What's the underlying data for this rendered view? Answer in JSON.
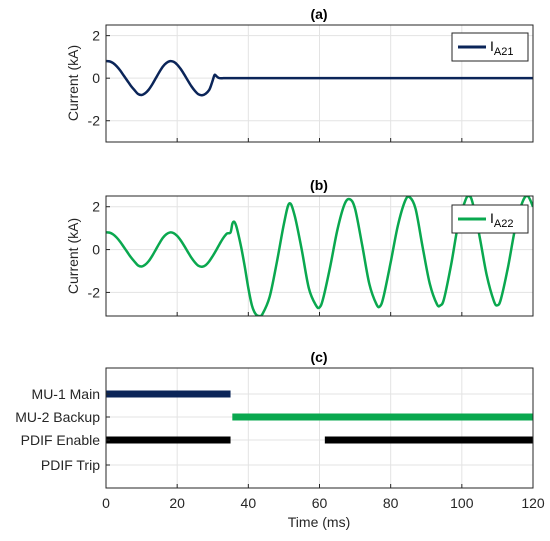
{
  "colors": {
    "navy": "#0b2559",
    "green": "#0aa84f",
    "black": "#000000",
    "grid": "#e3e3e3",
    "axis": "#262626"
  },
  "chart_data": [
    {
      "type": "line",
      "title": "(a)",
      "ylabel": "Current (kA)",
      "xlim": [
        0,
        120
      ],
      "ylim": [
        -3,
        2.5
      ],
      "xticks": [
        0,
        20,
        40,
        60,
        80,
        100,
        120
      ],
      "yticks": [
        2,
        0,
        -2
      ],
      "show_xticklabels": false,
      "grid": true,
      "legend_position": "top-right",
      "series": [
        {
          "name": "I_A21",
          "name_main": "I",
          "name_sub": "A21",
          "color": "#0b2559",
          "x": [
            0,
            1,
            2,
            3,
            4,
            5,
            6,
            7,
            8,
            9,
            10,
            11,
            12,
            13,
            14,
            15,
            16,
            17,
            18,
            19,
            20,
            21,
            22,
            23,
            24,
            25,
            26,
            27,
            28,
            29,
            29.5,
            30,
            30.5,
            31,
            31.5,
            32,
            33,
            34,
            35,
            40,
            50,
            60,
            70,
            80,
            90,
            100,
            110,
            120
          ],
          "y": [
            0.8,
            0.79,
            0.71,
            0.56,
            0.36,
            0.12,
            -0.12,
            -0.36,
            -0.56,
            -0.74,
            -0.79,
            -0.71,
            -0.54,
            -0.29,
            0.0,
            0.29,
            0.55,
            0.72,
            0.8,
            0.77,
            0.64,
            0.43,
            0.17,
            -0.11,
            -0.38,
            -0.6,
            -0.76,
            -0.8,
            -0.73,
            -0.55,
            -0.35,
            -0.1,
            0.15,
            0.1,
            0.03,
            0.0,
            0.0,
            0.0,
            0.0,
            0.0,
            0.0,
            0.0,
            0.0,
            0.0,
            0.0,
            0.0,
            0.0,
            0.0
          ]
        }
      ]
    },
    {
      "type": "line",
      "title": "(b)",
      "ylabel": "Current (kA)",
      "xlim": [
        0,
        120
      ],
      "ylim": [
        -3.1,
        2.5
      ],
      "xticks": [
        0,
        20,
        40,
        60,
        80,
        100,
        120
      ],
      "yticks": [
        2,
        0,
        -2
      ],
      "show_xticklabels": false,
      "grid": true,
      "legend_position": "top-right",
      "series": [
        {
          "name": "I_A22",
          "name_main": "I",
          "name_sub": "A22",
          "color": "#0aa84f",
          "x": [
            0,
            1,
            2,
            3,
            4,
            5,
            6,
            7,
            8,
            9,
            10,
            11,
            12,
            13,
            14,
            15,
            16,
            17,
            18,
            19,
            20,
            21,
            22,
            23,
            24,
            25,
            26,
            27,
            28,
            29,
            30,
            31,
            32,
            33,
            34,
            35,
            35.5,
            36,
            36.5,
            37,
            38,
            39,
            40,
            41,
            42,
            43,
            44,
            46,
            48,
            50,
            51.5,
            53,
            55,
            57,
            59,
            60,
            61,
            63,
            65,
            67,
            68.5,
            70,
            72,
            74,
            76,
            77,
            78,
            80,
            82,
            84,
            85.3,
            87,
            89,
            91,
            93,
            94,
            95,
            97,
            99,
            101,
            102,
            103,
            105,
            107,
            109,
            110,
            111,
            113,
            115,
            117,
            118.5,
            120
          ],
          "y": [
            0.8,
            0.79,
            0.71,
            0.56,
            0.36,
            0.12,
            -0.12,
            -0.36,
            -0.56,
            -0.74,
            -0.79,
            -0.71,
            -0.54,
            -0.29,
            0.0,
            0.29,
            0.55,
            0.72,
            0.8,
            0.77,
            0.64,
            0.43,
            0.17,
            -0.11,
            -0.38,
            -0.6,
            -0.76,
            -0.8,
            -0.73,
            -0.55,
            -0.3,
            -0.02,
            0.28,
            0.55,
            0.75,
            0.8,
            1.2,
            1.3,
            1.15,
            0.85,
            0.1,
            -0.8,
            -1.8,
            -2.6,
            -3.0,
            -3.1,
            -3.0,
            -2.2,
            -0.6,
            1.2,
            2.15,
            1.6,
            0.0,
            -1.8,
            -2.6,
            -2.7,
            -2.3,
            -0.8,
            0.9,
            2.1,
            2.35,
            1.9,
            0.2,
            -1.6,
            -2.55,
            -2.65,
            -2.2,
            -0.6,
            1.1,
            2.25,
            2.45,
            1.9,
            0.1,
            -1.6,
            -2.55,
            -2.6,
            -2.3,
            -0.7,
            1.2,
            2.3,
            2.5,
            2.2,
            0.6,
            -1.2,
            -2.4,
            -2.6,
            -2.3,
            -0.8,
            1.0,
            2.2,
            2.5,
            2.0
          ]
        }
      ]
    },
    {
      "type": "timeline",
      "title": "(c)",
      "xlabel": "Time (ms)",
      "xlim": [
        0,
        120
      ],
      "xticks": [
        0,
        20,
        40,
        60,
        80,
        100,
        120
      ],
      "xtick_labels": [
        "0",
        "20",
        "40",
        "60",
        "80",
        "100",
        "120"
      ],
      "grid": true,
      "rows": [
        {
          "label": "MU-1 Main",
          "color": "#0b2559",
          "segments": [
            [
              0,
              35
            ]
          ]
        },
        {
          "label": "MU-2 Backup",
          "color": "#0aa84f",
          "segments": [
            [
              35.5,
              120
            ]
          ]
        },
        {
          "label": "PDIF Enable",
          "color": "#000000",
          "segments": [
            [
              0,
              35
            ],
            [
              61.5,
              120
            ]
          ]
        },
        {
          "label": "PDIF Trip",
          "color": "#000000",
          "segments": []
        }
      ]
    }
  ]
}
